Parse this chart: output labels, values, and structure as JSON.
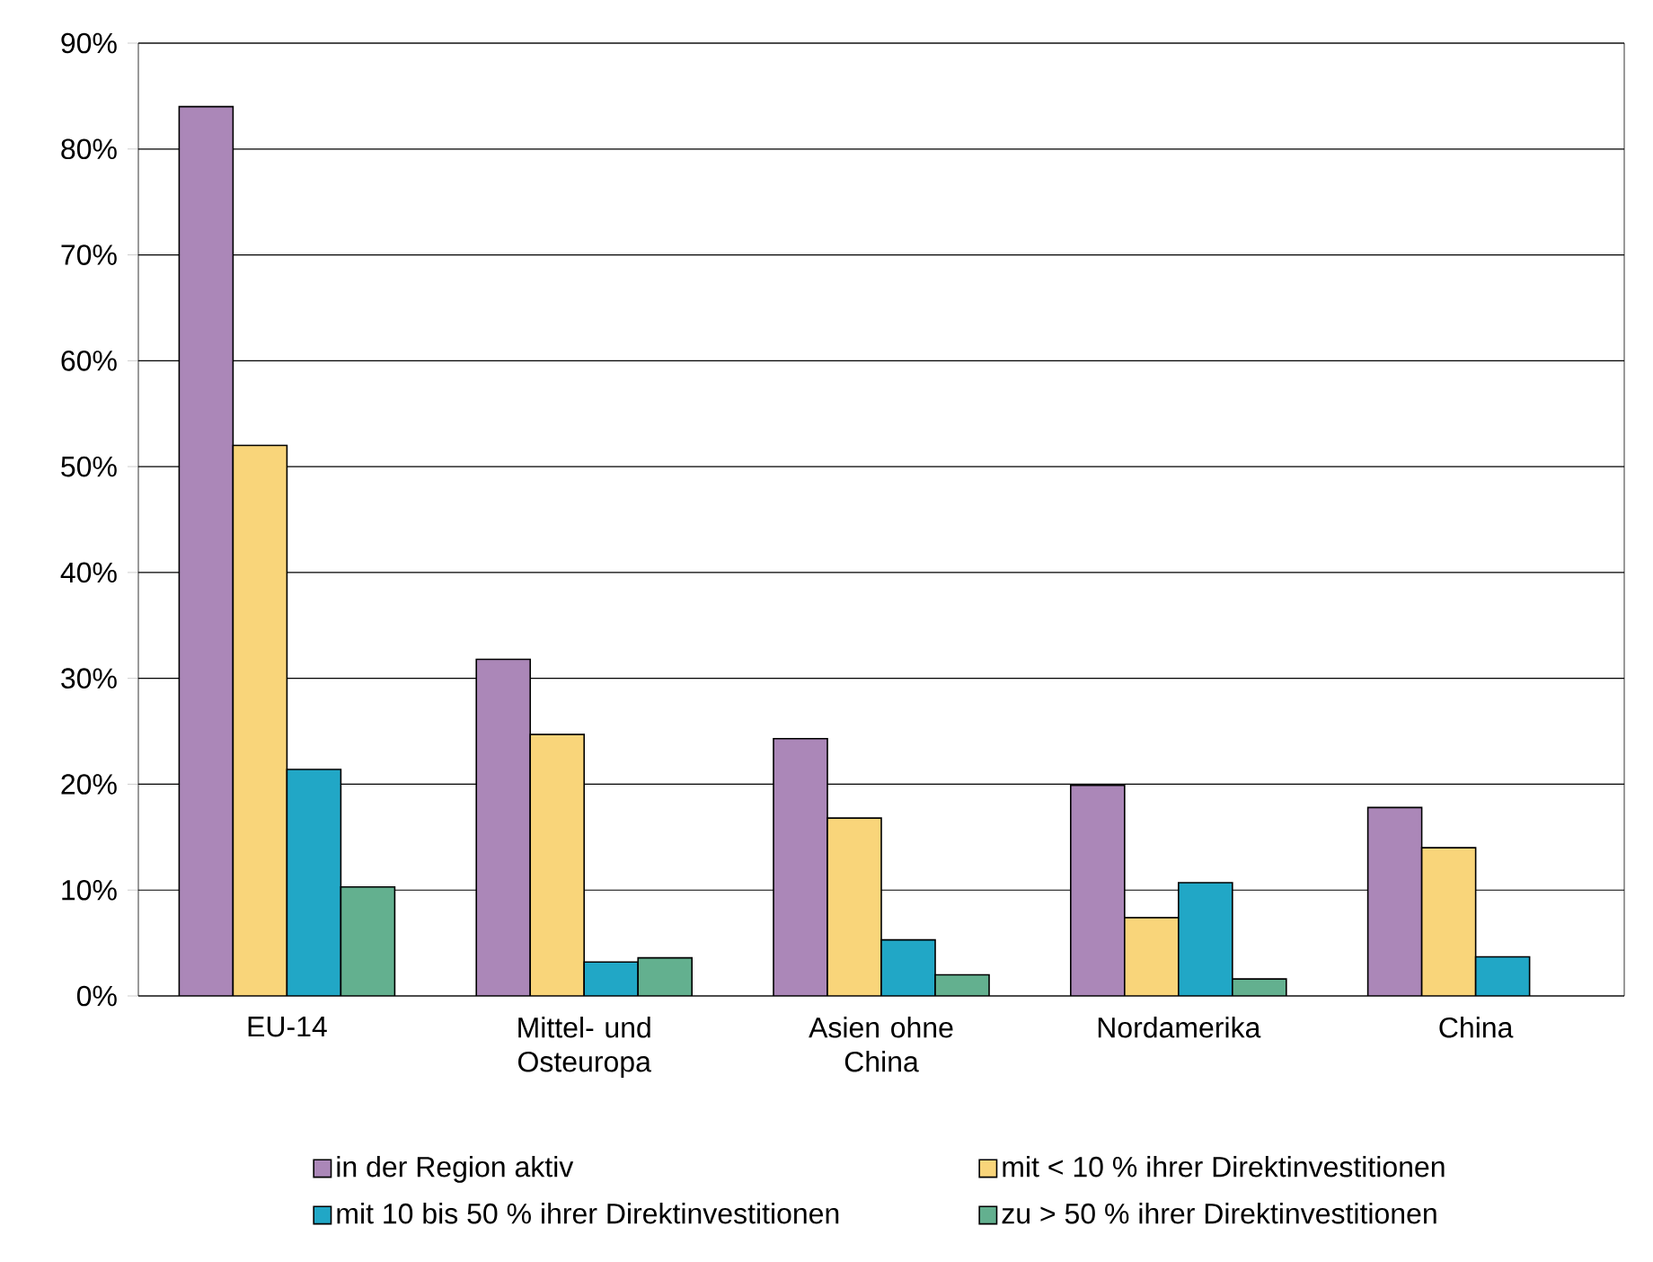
{
  "chart_data": {
    "type": "bar",
    "categories": [
      "EU-14",
      "Mittel- und Osteuropa",
      "Asien ohne China",
      "Nordamerika",
      "China"
    ],
    "series": [
      {
        "name": "in der Region aktiv",
        "color": "#ab87b8",
        "values": [
          84,
          31.8,
          24.3,
          19.9,
          17.8
        ]
      },
      {
        "name": "mit < 10 % ihrer Direktinvestitionen",
        "color": "#f9d57a",
        "values": [
          52,
          24.7,
          16.8,
          7.4,
          14
        ]
      },
      {
        "name": "mit 10 bis 50 % ihrer Direktinvestitionen",
        "color": "#21a7c6",
        "values": [
          21.4,
          3.2,
          5.3,
          10.7,
          3.7
        ]
      },
      {
        "name": "zu > 50 % ihrer Direktinvestitionen",
        "color": "#63b08f",
        "values": [
          10.3,
          3.6,
          2.0,
          1.6,
          null
        ]
      }
    ],
    "ylim": [
      0,
      90
    ],
    "yticks": [
      {
        "value": 0,
        "label": "0%"
      },
      {
        "value": 10,
        "label": "10%"
      },
      {
        "value": 20,
        "label": "20%"
      },
      {
        "value": 30,
        "label": "30%"
      },
      {
        "value": 40,
        "label": "40%"
      },
      {
        "value": 50,
        "label": "50%"
      },
      {
        "value": 60,
        "label": "60%"
      },
      {
        "value": 70,
        "label": "70%"
      },
      {
        "value": 80,
        "label": "80%"
      },
      {
        "value": 90,
        "label": "90%"
      }
    ],
    "grid": "y",
    "legend": "bottom"
  }
}
